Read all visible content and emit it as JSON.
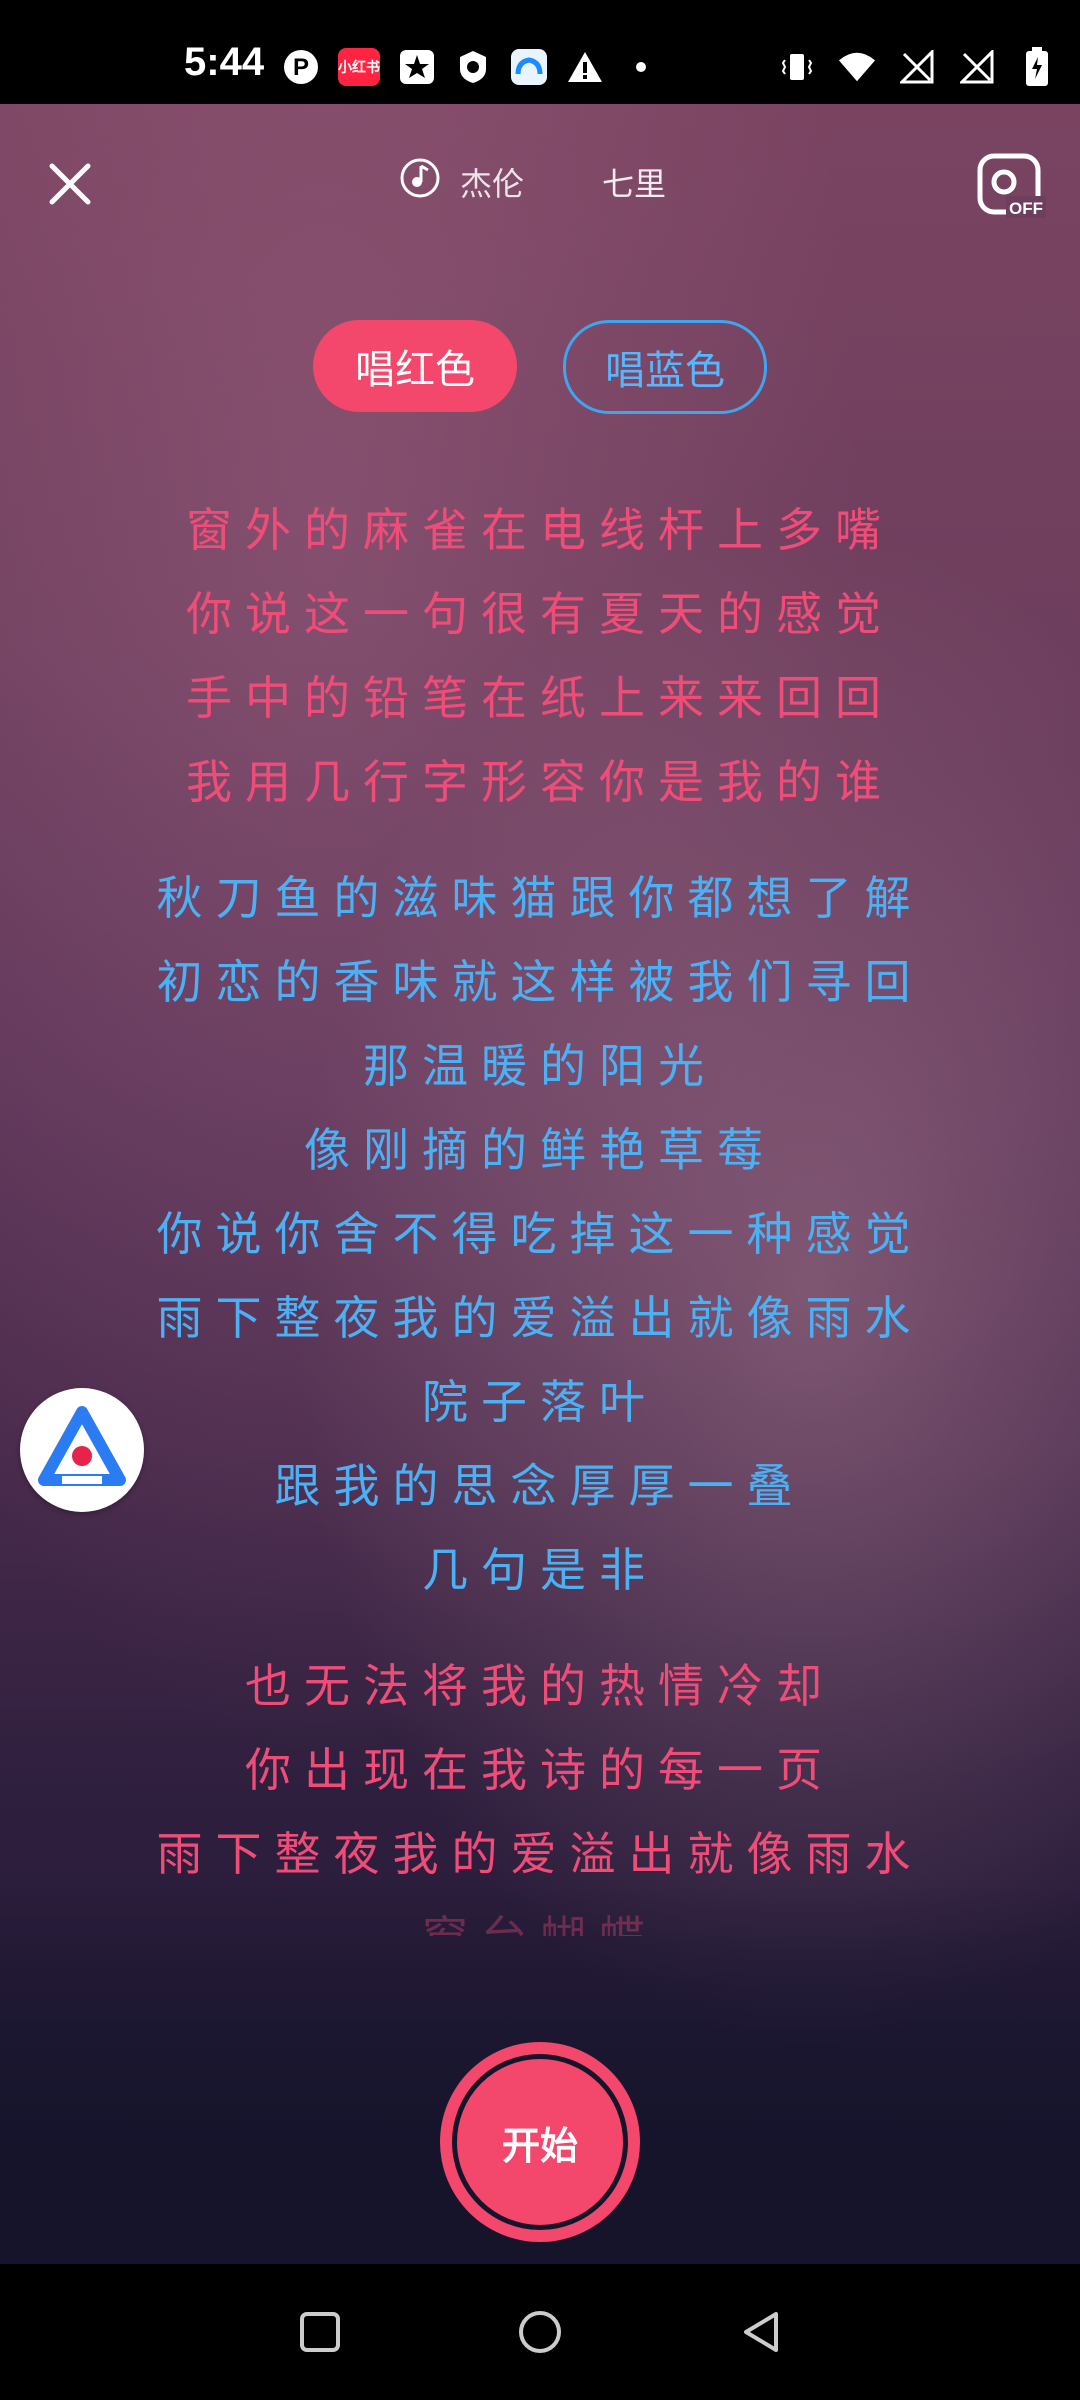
{
  "status_bar": {
    "time": "5:44",
    "left_icons": [
      "pinterest-icon",
      "redbook-icon",
      "star-news-icon",
      "vpn-icon",
      "cloud-app-icon",
      "warning-icon",
      "dot-icon"
    ],
    "redbook_label": "小红书",
    "right_icons": [
      "vibrate-icon",
      "wifi-icon",
      "signal-off-icon",
      "signal-off-icon",
      "battery-charging-icon"
    ]
  },
  "header": {
    "close_icon": "close-icon",
    "song_icon": "music-note-icon",
    "artist": "杰伦",
    "title": "七里",
    "camera_toggle_icon": "camera-off-icon",
    "camera_toggle_label": "OFF"
  },
  "parts": {
    "red_label": "唱红色",
    "blue_label": "唱蓝色"
  },
  "lyrics": {
    "verse1": [
      "窗外的麻雀在电线杆上多嘴",
      "你说这一句很有夏天的感觉",
      "手中的铅笔在纸上来来回回",
      "我用几行字形容你是我的谁"
    ],
    "verse2": [
      "秋刀鱼的滋味猫跟你都想了解",
      "初恋的香味就这样被我们寻回",
      "那温暖的阳光",
      "像刚摘的鲜艳草莓",
      "你说你舍不得吃掉这一种感觉",
      "雨下整夜我的爱溢出就像雨水",
      "院子落叶",
      "跟我的思念厚厚一叠",
      "几句是非"
    ],
    "verse3": [
      "也无法将我的热情冷却",
      "你出现在我诗的每一页",
      "雨下整夜我的爱溢出就像雨水"
    ],
    "partial_line": "窗台蝴蝶"
  },
  "floating_badge_icon": "assistant-badge-icon",
  "start_button_label": "开始",
  "colors": {
    "red_part": "#f04c78",
    "blue_part": "#4bb0f4",
    "accent": "#f3476c"
  },
  "nav_bar": {
    "icons": [
      "recent-apps-icon",
      "home-icon",
      "back-icon"
    ]
  }
}
